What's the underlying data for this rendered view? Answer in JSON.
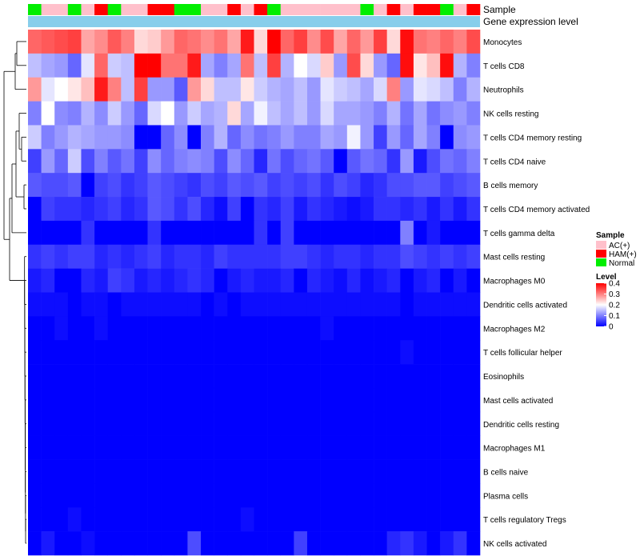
{
  "chart_data": {
    "type": "heatmap",
    "title": "",
    "annotation_tracks": [
      {
        "name": "Sample",
        "label": "Sample"
      },
      {
        "name": "Gene expression level",
        "label": "Gene expression level"
      }
    ],
    "sample_groups": [
      "Normal",
      "AC(+)",
      "AC(+)",
      "Normal",
      "AC(+)",
      "HAM(+)",
      "Normal",
      "AC(+)",
      "AC(+)",
      "HAM(+)",
      "HAM(+)",
      "Normal",
      "Normal",
      "AC(+)",
      "AC(+)",
      "HAM(+)",
      "AC(+)",
      "HAM(+)",
      "Normal",
      "AC(+)",
      "AC(+)",
      "AC(+)",
      "AC(+)",
      "AC(+)",
      "AC(+)",
      "Normal",
      "AC(+)",
      "HAM(+)",
      "AC(+)",
      "HAM(+)",
      "HAM(+)",
      "Normal",
      "AC(+)",
      "HAM(+)"
    ],
    "rows": [
      "Monocytes",
      "T cells CD8",
      "Neutrophils",
      "NK cells resting",
      "T cells CD4 memory resting",
      "T cells CD4 naive",
      "B cells memory",
      "T cells CD4 memory activated",
      "T cells gamma delta",
      "Mast cells resting",
      "Macrophages M0",
      "Dendritic cells activated",
      "Macrophages M2",
      "T cells follicular helper",
      "Eosinophils",
      "Mast cells activated",
      "Dendritic cells resting",
      "Macrophages M1",
      "B cells naive",
      "Plasma cells",
      "T cells regulatory  Tregs",
      "NK cells activated"
    ],
    "values": [
      [
        0.32,
        0.33,
        0.34,
        0.35,
        0.27,
        0.29,
        0.33,
        0.3,
        0.23,
        0.24,
        0.28,
        0.32,
        0.31,
        0.29,
        0.31,
        0.27,
        0.38,
        0.23,
        0.4,
        0.32,
        0.35,
        0.29,
        0.34,
        0.27,
        0.32,
        0.28,
        0.35,
        0.23,
        0.39,
        0.31,
        0.3,
        0.32,
        0.3,
        0.34
      ],
      [
        0.15,
        0.13,
        0.12,
        0.08,
        0.18,
        0.32,
        0.16,
        0.15,
        0.4,
        0.4,
        0.31,
        0.31,
        0.38,
        0.13,
        0.1,
        0.13,
        0.31,
        0.15,
        0.35,
        0.14,
        0.2,
        0.17,
        0.24,
        0.12,
        0.34,
        0.23,
        0.12,
        0.08,
        0.39,
        0.22,
        0.25,
        0.39,
        0.14,
        0.1
      ],
      [
        0.28,
        0.18,
        0.2,
        0.22,
        0.25,
        0.38,
        0.3,
        0.15,
        0.35,
        0.12,
        0.12,
        0.07,
        0.28,
        0.23,
        0.15,
        0.15,
        0.22,
        0.16,
        0.14,
        0.13,
        0.15,
        0.12,
        0.18,
        0.16,
        0.15,
        0.13,
        0.17,
        0.3,
        0.12,
        0.18,
        0.17,
        0.15,
        0.1,
        0.14
      ],
      [
        0.1,
        0.2,
        0.11,
        0.1,
        0.14,
        0.11,
        0.16,
        0.12,
        0.08,
        0.17,
        0.2,
        0.12,
        0.16,
        0.13,
        0.14,
        0.23,
        0.13,
        0.19,
        0.15,
        0.13,
        0.15,
        0.12,
        0.17,
        0.13,
        0.13,
        0.12,
        0.1,
        0.14,
        0.09,
        0.13,
        0.09,
        0.11,
        0.12,
        0.1
      ],
      [
        0.16,
        0.1,
        0.12,
        0.14,
        0.13,
        0.12,
        0.12,
        0.11,
        0.0,
        0.0,
        0.08,
        0.11,
        0.0,
        0.1,
        0.14,
        0.08,
        0.11,
        0.09,
        0.1,
        0.12,
        0.1,
        0.1,
        0.13,
        0.12,
        0.19,
        0.12,
        0.05,
        0.12,
        0.08,
        0.13,
        0.1,
        0.0,
        0.11,
        0.12
      ],
      [
        0.05,
        0.12,
        0.08,
        0.16,
        0.06,
        0.1,
        0.07,
        0.09,
        0.05,
        0.11,
        0.08,
        0.1,
        0.11,
        0.1,
        0.06,
        0.11,
        0.08,
        0.03,
        0.09,
        0.06,
        0.08,
        0.09,
        0.07,
        0.0,
        0.07,
        0.09,
        0.08,
        0.04,
        0.12,
        0.02,
        0.06,
        0.09,
        0.08,
        0.1
      ],
      [
        0.07,
        0.06,
        0.06,
        0.07,
        0.0,
        0.05,
        0.06,
        0.04,
        0.05,
        0.07,
        0.06,
        0.05,
        0.04,
        0.06,
        0.05,
        0.07,
        0.06,
        0.07,
        0.05,
        0.06,
        0.05,
        0.06,
        0.04,
        0.06,
        0.05,
        0.03,
        0.04,
        0.06,
        0.06,
        0.07,
        0.07,
        0.05,
        0.06,
        0.07
      ],
      [
        0.0,
        0.05,
        0.04,
        0.04,
        0.03,
        0.04,
        0.05,
        0.03,
        0.04,
        0.07,
        0.06,
        0.04,
        0.06,
        0.03,
        0.01,
        0.05,
        0.0,
        0.04,
        0.03,
        0.05,
        0.02,
        0.04,
        0.03,
        0.02,
        0.01,
        0.02,
        0.04,
        0.04,
        0.03,
        0.04,
        0.02,
        0.04,
        0.02,
        0.04
      ],
      [
        0.0,
        0.0,
        0.0,
        0.0,
        0.04,
        0.0,
        0.0,
        0.0,
        0.0,
        0.04,
        0.0,
        0.0,
        0.0,
        0.0,
        0.0,
        0.0,
        0.0,
        0.04,
        0.0,
        0.05,
        0.0,
        0.0,
        0.0,
        0.0,
        0.0,
        0.0,
        0.0,
        0.0,
        0.1,
        0.0,
        0.02,
        0.0,
        0.0,
        0.0
      ],
      [
        0.04,
        0.05,
        0.04,
        0.05,
        0.05,
        0.03,
        0.04,
        0.03,
        0.04,
        0.05,
        0.03,
        0.04,
        0.04,
        0.03,
        0.05,
        0.04,
        0.04,
        0.04,
        0.04,
        0.05,
        0.05,
        0.04,
        0.03,
        0.04,
        0.04,
        0.03,
        0.04,
        0.04,
        0.06,
        0.05,
        0.04,
        0.05,
        0.04,
        0.05
      ],
      [
        0.02,
        0.03,
        0.0,
        0.0,
        0.03,
        0.02,
        0.05,
        0.04,
        0.02,
        0.03,
        0.02,
        0.03,
        0.04,
        0.03,
        0.0,
        0.02,
        0.03,
        0.02,
        0.02,
        0.03,
        0.0,
        0.03,
        0.02,
        0.01,
        0.03,
        0.01,
        0.02,
        0.03,
        0.0,
        0.02,
        0.03,
        0.0,
        0.02,
        0.0
      ],
      [
        0.01,
        0.01,
        0.01,
        0.0,
        0.01,
        0.01,
        0.0,
        0.01,
        0.01,
        0.01,
        0.01,
        0.01,
        0.01,
        0.0,
        0.01,
        0.0,
        0.01,
        0.01,
        0.01,
        0.01,
        0.01,
        0.01,
        0.01,
        0.01,
        0.01,
        0.01,
        0.01,
        0.01,
        0.0,
        0.01,
        0.01,
        0.01,
        0.01,
        0.01
      ],
      [
        0.0,
        0.0,
        0.01,
        0.0,
        0.0,
        0.01,
        0.0,
        0.0,
        0.0,
        0.0,
        0.0,
        0.0,
        0.0,
        0.0,
        0.0,
        0.0,
        0.0,
        0.0,
        0.0,
        0.0,
        0.0,
        0.0,
        0.01,
        0.0,
        0.0,
        0.0,
        0.0,
        0.0,
        0.0,
        0.0,
        0.0,
        0.0,
        0.0,
        0.0
      ],
      [
        0.0,
        0.0,
        0.0,
        0.0,
        0.0,
        0.0,
        0.0,
        0.0,
        0.0,
        0.0,
        0.0,
        0.0,
        0.0,
        0.0,
        0.0,
        0.0,
        0.0,
        0.0,
        0.0,
        0.0,
        0.0,
        0.0,
        0.0,
        0.0,
        0.0,
        0.0,
        0.0,
        0.0,
        0.01,
        0.0,
        0.0,
        0.0,
        0.0,
        0.0
      ],
      [
        0.0,
        0.0,
        0.0,
        0.0,
        0.0,
        0.0,
        0.0,
        0.0,
        0.0,
        0.0,
        0.0,
        0.0,
        0.0,
        0.0,
        0.0,
        0.0,
        0.0,
        0.0,
        0.0,
        0.0,
        0.0,
        0.0,
        0.0,
        0.0,
        0.0,
        0.0,
        0.0,
        0.0,
        0.0,
        0.0,
        0.0,
        0.0,
        0.0,
        0.0
      ],
      [
        0.0,
        0.0,
        0.0,
        0.0,
        0.0,
        0.0,
        0.0,
        0.0,
        0.0,
        0.0,
        0.0,
        0.0,
        0.0,
        0.0,
        0.0,
        0.0,
        0.0,
        0.0,
        0.0,
        0.0,
        0.0,
        0.0,
        0.0,
        0.0,
        0.0,
        0.0,
        0.0,
        0.0,
        0.0,
        0.0,
        0.0,
        0.0,
        0.0,
        0.0
      ],
      [
        0.0,
        0.0,
        0.0,
        0.0,
        0.0,
        0.0,
        0.0,
        0.0,
        0.0,
        0.0,
        0.0,
        0.0,
        0.0,
        0.0,
        0.0,
        0.0,
        0.0,
        0.0,
        0.0,
        0.0,
        0.0,
        0.0,
        0.0,
        0.0,
        0.0,
        0.0,
        0.0,
        0.0,
        0.0,
        0.0,
        0.0,
        0.0,
        0.0,
        0.0
      ],
      [
        0.0,
        0.0,
        0.0,
        0.0,
        0.0,
        0.0,
        0.0,
        0.0,
        0.0,
        0.0,
        0.0,
        0.0,
        0.0,
        0.0,
        0.0,
        0.0,
        0.0,
        0.0,
        0.0,
        0.0,
        0.0,
        0.0,
        0.0,
        0.0,
        0.0,
        0.0,
        0.0,
        0.0,
        0.0,
        0.0,
        0.0,
        0.0,
        0.0,
        0.0
      ],
      [
        0.0,
        0.0,
        0.0,
        0.0,
        0.0,
        0.0,
        0.0,
        0.0,
        0.0,
        0.0,
        0.0,
        0.0,
        0.0,
        0.0,
        0.0,
        0.0,
        0.0,
        0.0,
        0.0,
        0.0,
        0.0,
        0.0,
        0.0,
        0.0,
        0.0,
        0.0,
        0.0,
        0.0,
        0.0,
        0.0,
        0.0,
        0.0,
        0.0,
        0.0
      ],
      [
        0.0,
        0.0,
        0.0,
        0.0,
        0.0,
        0.0,
        0.0,
        0.0,
        0.0,
        0.0,
        0.0,
        0.0,
        0.0,
        0.0,
        0.0,
        0.0,
        0.0,
        0.0,
        0.0,
        0.0,
        0.0,
        0.0,
        0.0,
        0.0,
        0.0,
        0.0,
        0.0,
        0.0,
        0.0,
        0.0,
        0.0,
        0.0,
        0.0,
        0.0
      ],
      [
        0.0,
        0.0,
        0.0,
        0.01,
        0.0,
        0.0,
        0.0,
        0.0,
        0.0,
        0.0,
        0.0,
        0.0,
        0.0,
        0.0,
        0.0,
        0.0,
        0.01,
        0.0,
        0.0,
        0.0,
        0.0,
        0.0,
        0.0,
        0.0,
        0.0,
        0.0,
        0.0,
        0.0,
        0.0,
        0.0,
        0.0,
        0.0,
        0.0,
        0.0
      ],
      [
        0.0,
        0.02,
        0.0,
        0.0,
        0.01,
        0.0,
        0.0,
        0.0,
        0.0,
        0.0,
        0.0,
        0.0,
        0.06,
        0.0,
        0.0,
        0.0,
        0.0,
        0.0,
        0.0,
        0.0,
        0.05,
        0.0,
        0.0,
        0.0,
        0.0,
        0.0,
        0.0,
        0.03,
        0.04,
        0.02,
        0.0,
        0.02,
        0.04,
        0.0
      ]
    ],
    "color_scale": {
      "min": 0,
      "max": 0.4,
      "low": "#0000ff",
      "mid": "#ffffff",
      "high": "#ff0000",
      "midpoint": 0.2
    },
    "legend": {
      "sample_title": "Sample",
      "sample_items": [
        {
          "label": "AC(+)",
          "color": "#ffc0cb"
        },
        {
          "label": "HAM(+)",
          "color": "#ff0000"
        },
        {
          "label": "Normal",
          "color": "#00ee00"
        }
      ],
      "level_title": "Level",
      "level_ticks": [
        "0.4",
        "0.3",
        "0.2",
        "0.1",
        "0"
      ],
      "level_tick_values": [
        0.4,
        0.3,
        0.2,
        0.1,
        0
      ]
    },
    "gene_expression_color": "#87ceeb",
    "legend_position": "right"
  }
}
